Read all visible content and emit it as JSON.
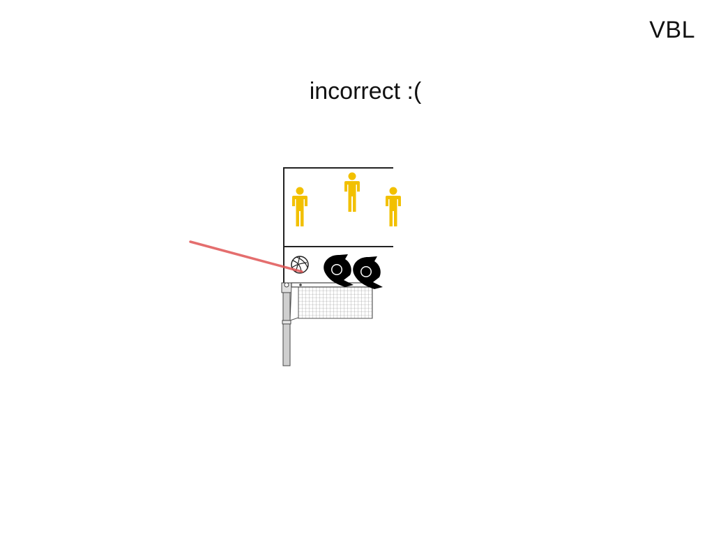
{
  "header": {
    "brand": "VBL"
  },
  "result": {
    "message": "incorrect :("
  },
  "colors": {
    "player": "#f2c000",
    "trajectory": "#e05555",
    "blocker": "#000000",
    "court_line": "#222222",
    "net_mesh": "#8a8a8a",
    "pole": "#cfcfcf"
  },
  "icons": {
    "players": [
      "person-icon",
      "person-icon",
      "person-icon"
    ],
    "blockers": [
      "blocker-icon",
      "blocker-icon"
    ],
    "ball": "volleyball-icon",
    "net": "volleyball-net-icon"
  }
}
